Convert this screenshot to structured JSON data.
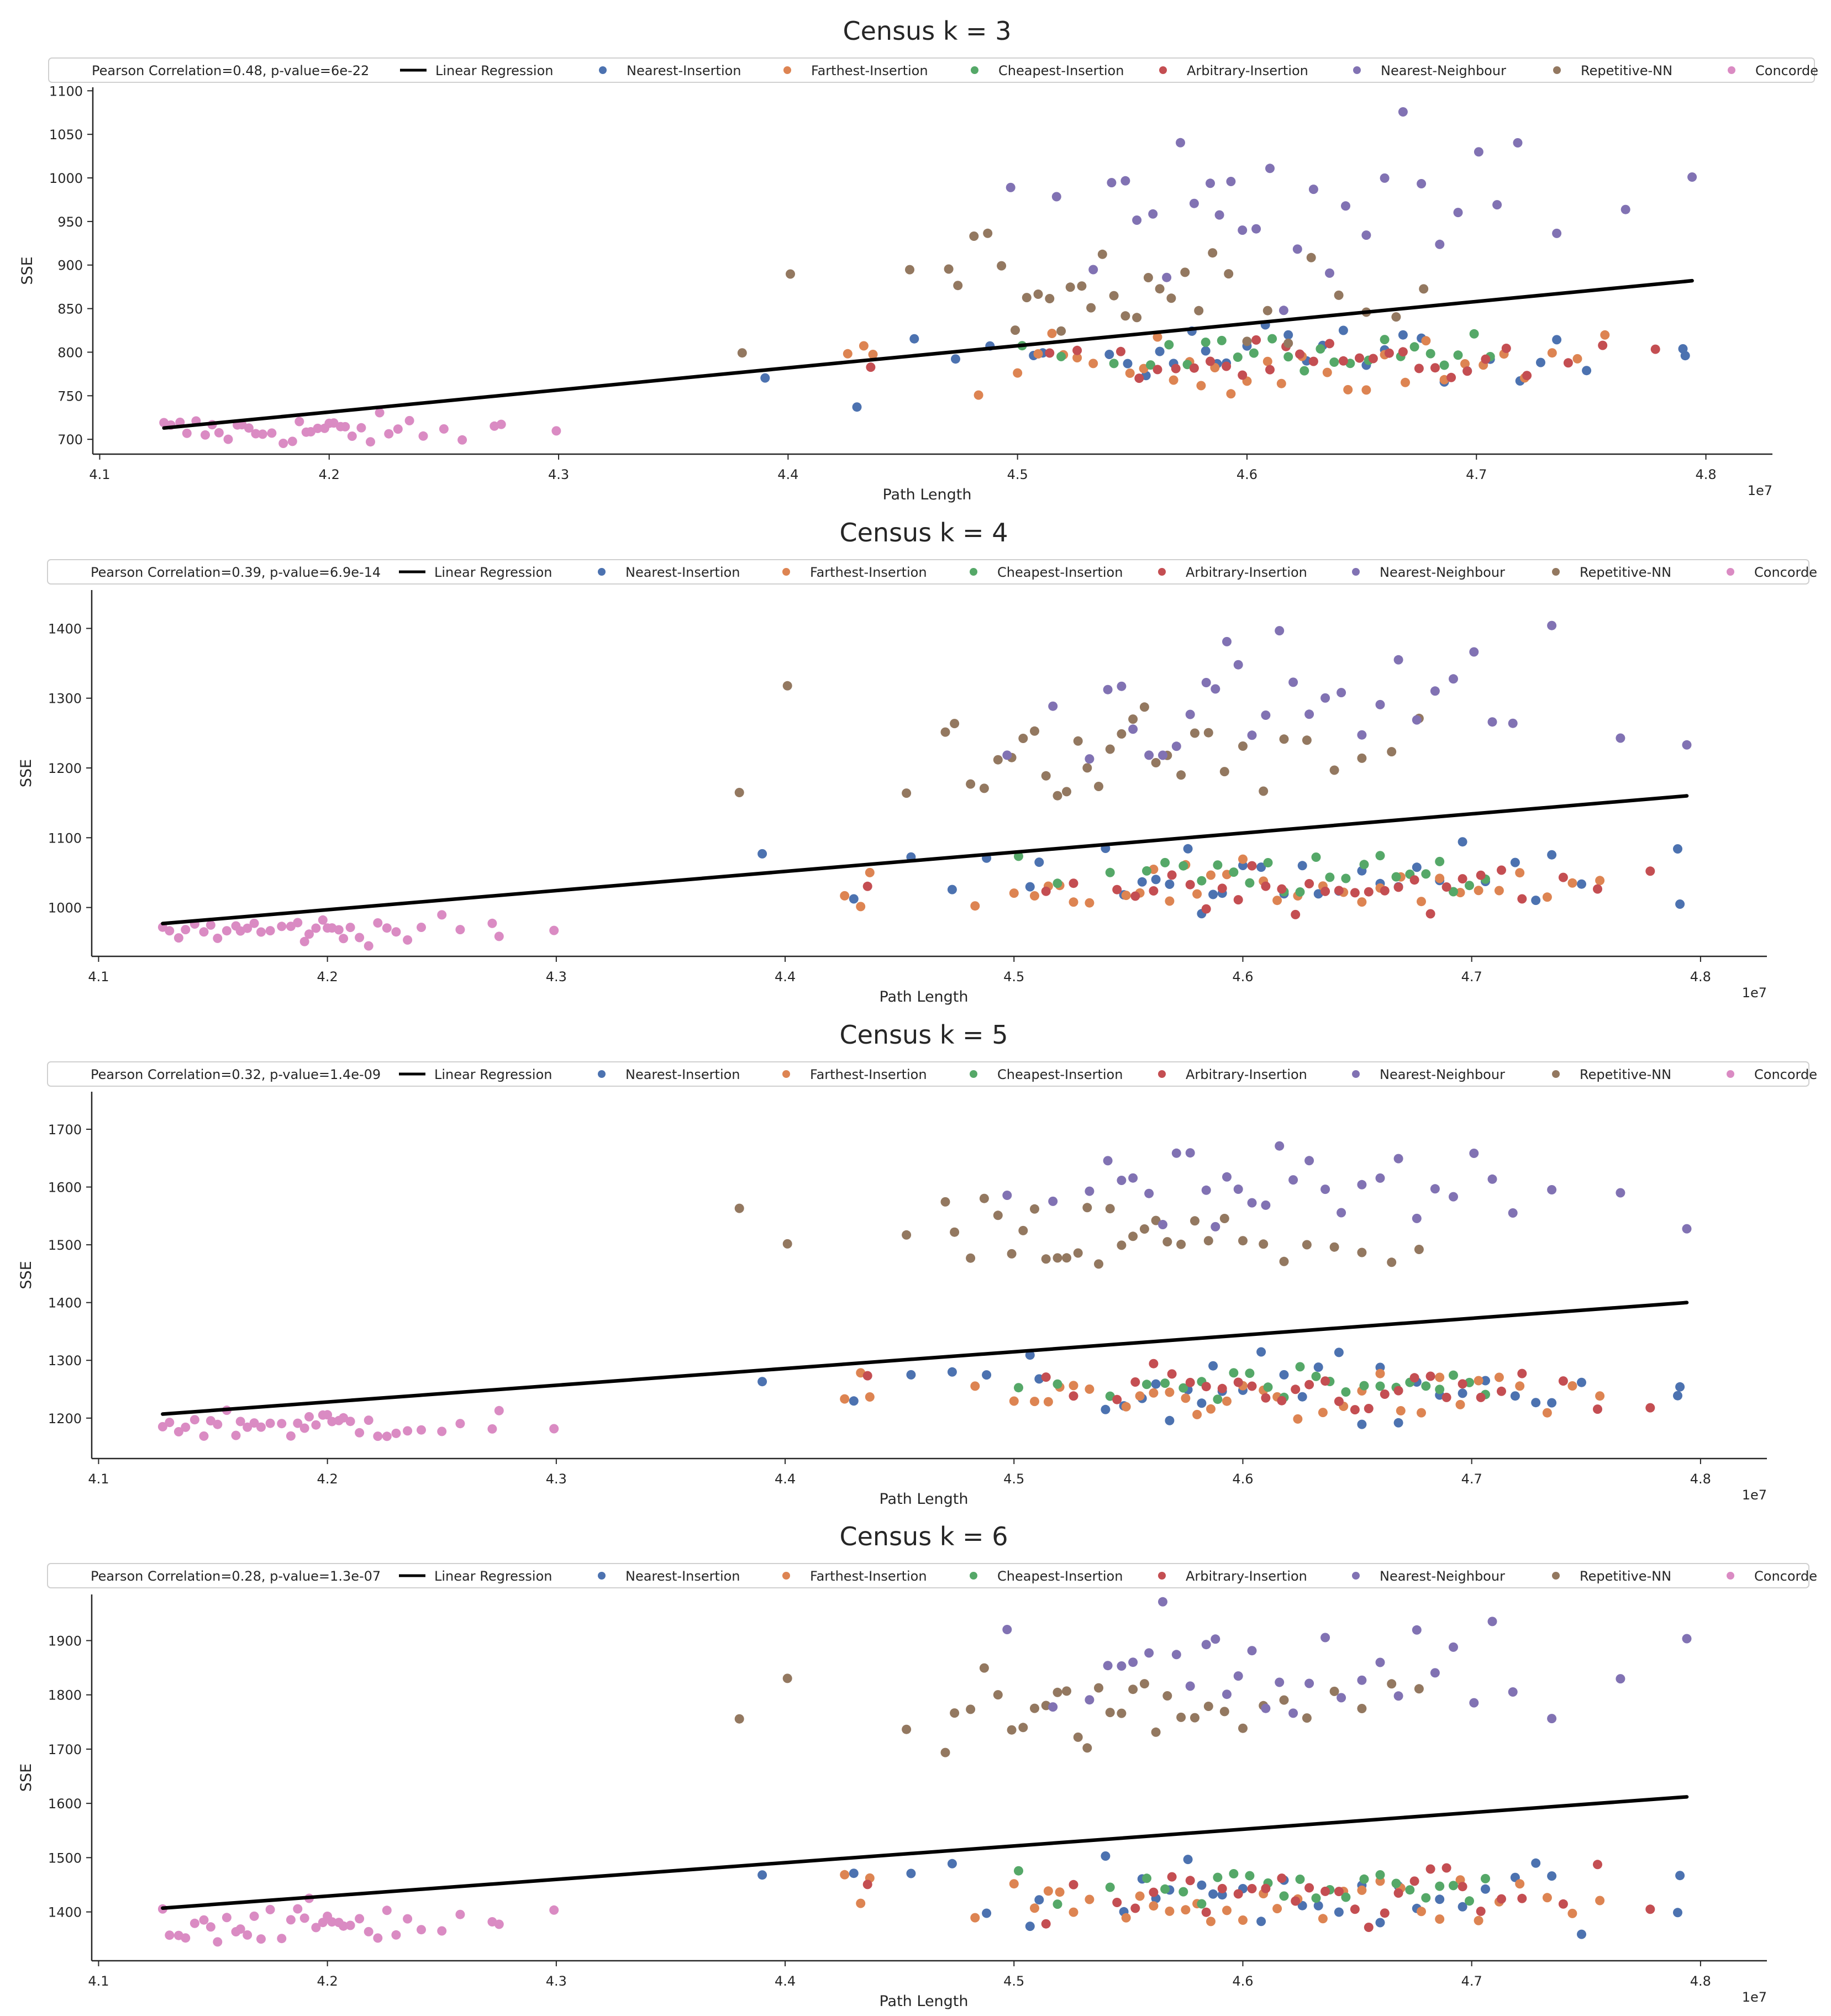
{
  "figure": {
    "xlabel": "Path Length",
    "ylabel": "SSE",
    "x_exponent_label": "1e7",
    "background": "#ffffff"
  },
  "legend_entries": [
    {
      "name": "Linear Regression",
      "kind": "line",
      "color": "#000000"
    },
    {
      "name": "Nearest-Insertion",
      "kind": "marker",
      "color": "#4c72b0"
    },
    {
      "name": "Farthest-Insertion",
      "kind": "marker",
      "color": "#dd8452"
    },
    {
      "name": "Cheapest-Insertion",
      "kind": "marker",
      "color": "#55a868"
    },
    {
      "name": "Arbitrary-Insertion",
      "kind": "marker",
      "color": "#c44e52"
    },
    {
      "name": "Nearest-Neighbour",
      "kind": "marker",
      "color": "#8172b3"
    },
    {
      "name": "Repetitive-NN",
      "kind": "marker",
      "color": "#937860"
    },
    {
      "name": "Concorde",
      "kind": "marker",
      "color": "#da8bc3"
    }
  ],
  "chart_data": [
    {
      "type": "scatter",
      "title": "Census k = 3",
      "stats_label": "Pearson Correlation=0.48, p-value=6e-22",
      "xlabel": "Path Length",
      "ylabel": "SSE",
      "x_scale_note": "1e7",
      "xlim": [
        4.097,
        4.829
      ],
      "ylim": [
        683,
        1104
      ],
      "xticks": [
        4.1,
        4.2,
        4.3,
        4.4,
        4.5,
        4.6,
        4.7,
        4.8
      ],
      "xtick_labels": [
        "4.1",
        "4.2",
        "4.3",
        "4.4",
        "4.5",
        "4.6",
        "4.7",
        "4.8"
      ],
      "yticks": [
        700,
        750,
        800,
        850,
        900,
        950,
        1000,
        1050,
        1100
      ],
      "ytick_labels": [
        "700",
        "750",
        "800",
        "850",
        "900",
        "950",
        "1000",
        "1050",
        "1100"
      ],
      "regression": {
        "x": [
          4.128,
          4.794
        ],
        "y": [
          713,
          882
        ]
      },
      "series_groups": {
        "Concorde": {
          "center": 710,
          "spread": 9
        },
        "Nearest-Insertion": {
          "center": 795,
          "spread": 22
        },
        "Farthest-Insertion": {
          "center": 785,
          "spread": 16
        },
        "Cheapest-Insertion": {
          "center": 800,
          "spread": 11
        },
        "Arbitrary-Insertion": {
          "center": 785,
          "spread": 14
        },
        "Nearest-Neighbour": {
          "center": 965,
          "spread": 45
        },
        "Repetitive-NN": {
          "center": 880,
          "spread": 32
        }
      }
    },
    {
      "type": "scatter",
      "title": "Census k = 4",
      "stats_label": "Pearson Correlation=0.39, p-value=6.9e-14",
      "xlabel": "Path Length",
      "ylabel": "SSE",
      "x_scale_note": "1e7",
      "xlim": [
        4.097,
        4.829
      ],
      "ylim": [
        930,
        1455
      ],
      "xticks": [
        4.1,
        4.2,
        4.3,
        4.4,
        4.5,
        4.6,
        4.7,
        4.8
      ],
      "xtick_labels": [
        "4.1",
        "4.2",
        "4.3",
        "4.4",
        "4.5",
        "4.6",
        "4.7",
        "4.8"
      ],
      "yticks": [
        1000,
        1100,
        1200,
        1300,
        1400
      ],
      "ytick_labels": [
        "1000",
        "1100",
        "1200",
        "1300",
        "1400"
      ],
      "regression": {
        "x": [
          4.128,
          4.794
        ],
        "y": [
          977,
          1160
        ]
      },
      "series_groups": {
        "Concorde": {
          "center": 968,
          "spread": 10
        },
        "Nearest-Insertion": {
          "center": 1045,
          "spread": 25
        },
        "Farthest-Insertion": {
          "center": 1030,
          "spread": 16
        },
        "Cheapest-Insertion": {
          "center": 1045,
          "spread": 14
        },
        "Arbitrary-Insertion": {
          "center": 1030,
          "spread": 16
        },
        "Nearest-Neighbour": {
          "center": 1290,
          "spread": 50
        },
        "Repetitive-NN": {
          "center": 1220,
          "spread": 38
        }
      }
    },
    {
      "type": "scatter",
      "title": "Census k = 5",
      "stats_label": "Pearson Correlation=0.32, p-value=1.4e-09",
      "xlabel": "Path Length",
      "ylabel": "SSE",
      "x_scale_note": "1e7",
      "xlim": [
        4.097,
        4.829
      ],
      "ylim": [
        1130,
        1765
      ],
      "xticks": [
        4.1,
        4.2,
        4.3,
        4.4,
        4.5,
        4.6,
        4.7,
        4.8
      ],
      "xtick_labels": [
        "4.1",
        "4.2",
        "4.3",
        "4.4",
        "4.5",
        "4.6",
        "4.7",
        "4.8"
      ],
      "yticks": [
        1200,
        1300,
        1400,
        1500,
        1600,
        1700
      ],
      "ytick_labels": [
        "1200",
        "1300",
        "1400",
        "1500",
        "1600",
        "1700"
      ],
      "regression": {
        "x": [
          4.128,
          4.794
        ],
        "y": [
          1207,
          1400
        ]
      },
      "series_groups": {
        "Concorde": {
          "center": 1190,
          "spread": 14
        },
        "Nearest-Insertion": {
          "center": 1250,
          "spread": 30
        },
        "Farthest-Insertion": {
          "center": 1235,
          "spread": 20
        },
        "Cheapest-Insertion": {
          "center": 1255,
          "spread": 18
        },
        "Arbitrary-Insertion": {
          "center": 1245,
          "spread": 20
        },
        "Nearest-Neighbour": {
          "center": 1580,
          "spread": 50
        },
        "Repetitive-NN": {
          "center": 1505,
          "spread": 38
        }
      }
    },
    {
      "type": "scatter",
      "title": "Census k = 6",
      "stats_label": "Pearson Correlation=0.28, p-value=1.3e-07",
      "xlabel": "Path Length",
      "ylabel": "SSE",
      "x_scale_note": "1e7",
      "xlim": [
        4.097,
        4.829
      ],
      "ylim": [
        1310,
        1985
      ],
      "xticks": [
        4.1,
        4.2,
        4.3,
        4.4,
        4.5,
        4.6,
        4.7,
        4.8
      ],
      "xtick_labels": [
        "4.1",
        "4.2",
        "4.3",
        "4.4",
        "4.5",
        "4.6",
        "4.7",
        "4.8"
      ],
      "yticks": [
        1400,
        1500,
        1600,
        1700,
        1800,
        1900
      ],
      "ytick_labels": [
        "1400",
        "1500",
        "1600",
        "1700",
        "1800",
        "1900"
      ],
      "regression": {
        "x": [
          4.128,
          4.794
        ],
        "y": [
          1407,
          1612
        ]
      },
      "series_groups": {
        "Concorde": {
          "center": 1380,
          "spread": 18
        },
        "Nearest-Insertion": {
          "center": 1440,
          "spread": 35
        },
        "Farthest-Insertion": {
          "center": 1420,
          "spread": 25
        },
        "Cheapest-Insertion": {
          "center": 1445,
          "spread": 22
        },
        "Arbitrary-Insertion": {
          "center": 1430,
          "spread": 25
        },
        "Nearest-Neighbour": {
          "center": 1850,
          "spread": 55
        },
        "Repetitive-NN": {
          "center": 1770,
          "spread": 42
        }
      }
    }
  ],
  "x_positions": {
    "Concorde": [
      4.128,
      4.131,
      4.135,
      4.138,
      4.142,
      4.146,
      4.149,
      4.152,
      4.156,
      4.16,
      4.162,
      4.165,
      4.168,
      4.171,
      4.175,
      4.18,
      4.184,
      4.187,
      4.19,
      4.192,
      4.195,
      4.198,
      4.2,
      4.202,
      4.205,
      4.207,
      4.21,
      4.214,
      4.218,
      4.222,
      4.226,
      4.23,
      4.235,
      4.241,
      4.25,
      4.258,
      4.272,
      4.275,
      4.299
    ],
    "Nearest-Insertion": [
      4.39,
      4.43,
      4.455,
      4.473,
      4.488,
      4.507,
      4.511,
      4.54,
      4.548,
      4.556,
      4.562,
      4.568,
      4.576,
      4.582,
      4.587,
      4.591,
      4.6,
      4.608,
      4.618,
      4.626,
      4.633,
      4.642,
      4.652,
      4.66,
      4.668,
      4.676,
      4.686,
      4.696,
      4.706,
      4.719,
      4.728,
      4.735,
      4.748,
      4.79,
      4.791
    ],
    "Farthest-Insertion": [
      4.426,
      4.433,
      4.437,
      4.483,
      4.5,
      4.509,
      4.515,
      4.52,
      4.526,
      4.533,
      4.549,
      4.555,
      4.561,
      4.568,
      4.575,
      4.58,
      4.586,
      4.593,
      4.6,
      4.609,
      4.615,
      4.624,
      4.635,
      4.644,
      4.652,
      4.66,
      4.669,
      4.678,
      4.686,
      4.695,
      4.703,
      4.712,
      4.721,
      4.733,
      4.744,
      4.756
    ],
    "Cheapest-Insertion": [
      4.502,
      4.519,
      4.542,
      4.558,
      4.566,
      4.574,
      4.582,
      4.589,
      4.596,
      4.603,
      4.611,
      4.618,
      4.625,
      4.632,
      4.638,
      4.645,
      4.653,
      4.66,
      4.667,
      4.673,
      4.68,
      4.686,
      4.692,
      4.699,
      4.706
    ],
    "Arbitrary-Insertion": [
      4.436,
      4.514,
      4.526,
      4.545,
      4.553,
      4.561,
      4.569,
      4.577,
      4.584,
      4.591,
      4.598,
      4.604,
      4.61,
      4.617,
      4.623,
      4.629,
      4.636,
      4.642,
      4.649,
      4.655,
      4.662,
      4.668,
      4.675,
      4.682,
      4.689,
      4.696,
      4.704,
      4.713,
      4.722,
      4.74,
      4.755,
      4.778
    ],
    "Nearest-Neighbour": [
      4.497,
      4.517,
      4.533,
      4.541,
      4.547,
      4.552,
      4.559,
      4.565,
      4.571,
      4.577,
      4.584,
      4.588,
      4.593,
      4.598,
      4.604,
      4.61,
      4.616,
      4.622,
      4.629,
      4.636,
      4.643,
      4.652,
      4.66,
      4.668,
      4.676,
      4.684,
      4.692,
      4.701,
      4.709,
      4.718,
      4.735,
      4.765,
      4.794
    ],
    "Repetitive-NN": [
      4.38,
      4.401,
      4.453,
      4.47,
      4.474,
      4.481,
      4.487,
      4.493,
      4.499,
      4.504,
      4.509,
      4.514,
      4.519,
      4.523,
      4.528,
      4.532,
      4.537,
      4.542,
      4.547,
      4.552,
      4.557,
      4.562,
      4.567,
      4.573,
      4.579,
      4.585,
      4.592,
      4.6,
      4.609,
      4.618,
      4.628,
      4.64,
      4.652,
      4.665,
      4.677
    ]
  }
}
